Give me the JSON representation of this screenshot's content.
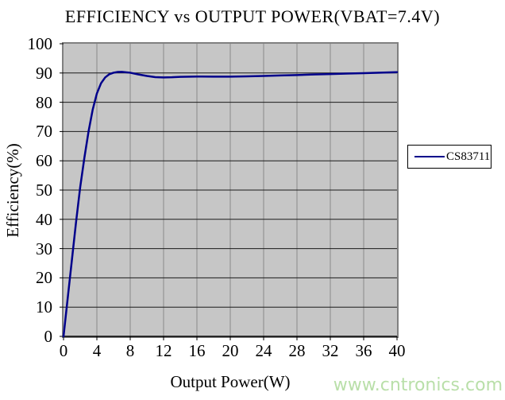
{
  "chart_data": {
    "type": "line",
    "title": "EFFICIENCY vs OUTPUT POWER(VBAT=7.4V)",
    "xlabel": "Output Power(W)",
    "ylabel": "Efficiency(%)",
    "xlim": [
      0,
      40
    ],
    "ylim": [
      0,
      100
    ],
    "x_ticks": [
      0,
      4,
      8,
      12,
      16,
      20,
      24,
      28,
      32,
      36,
      40
    ],
    "y_ticks": [
      0,
      10,
      20,
      30,
      40,
      50,
      60,
      70,
      80,
      90,
      100
    ],
    "grid": true,
    "legend_position": "right-middle",
    "colors": {
      "series": "#00008b",
      "plot_background": "#c6c6c6",
      "horizontal_grid": "#1a1a1a",
      "vertical_grid": "#8a8a8a",
      "plot_border": "#808080",
      "axis": "#000000"
    },
    "series": [
      {
        "name": "CS83711",
        "color": "#00008b",
        "x": [
          0,
          0.5,
          1,
          1.5,
          2,
          2.5,
          3,
          3.5,
          4,
          4.5,
          5,
          5.5,
          6,
          6.5,
          7,
          8,
          9,
          10,
          11,
          12,
          13,
          14,
          16,
          18,
          20,
          22,
          24,
          26,
          28,
          30,
          32,
          34,
          36,
          38,
          40
        ],
        "y": [
          0,
          13,
          26,
          39,
          51,
          61,
          70,
          77.5,
          83,
          86.5,
          88.5,
          89.6,
          90.1,
          90.35,
          90.4,
          90.1,
          89.5,
          89.0,
          88.6,
          88.5,
          88.55,
          88.7,
          88.8,
          88.75,
          88.75,
          88.85,
          89.0,
          89.15,
          89.3,
          89.5,
          89.65,
          89.8,
          89.95,
          90.1,
          90.3
        ]
      }
    ]
  },
  "watermark": {
    "text": "www.cntronics.com",
    "color": "#b9dfa9"
  }
}
